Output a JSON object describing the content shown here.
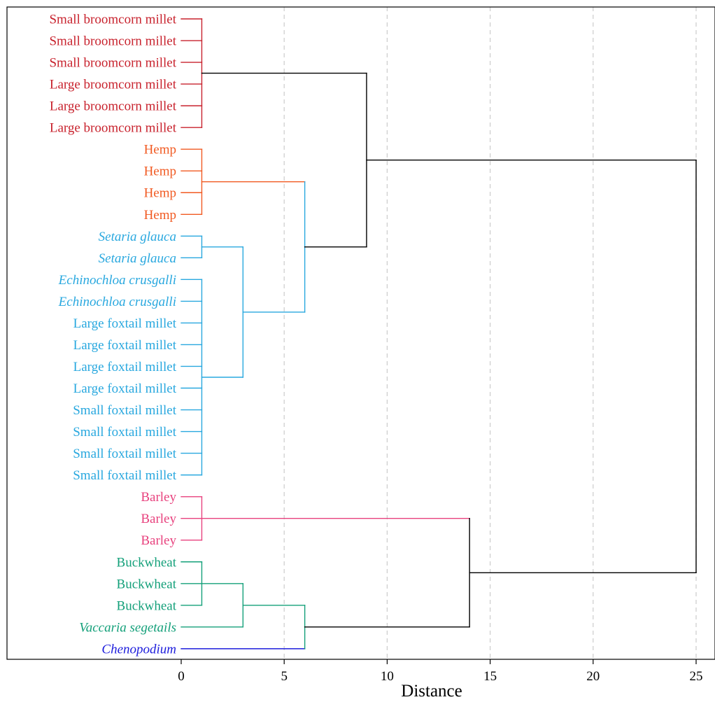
{
  "chart_data": {
    "type": "dendrogram",
    "xlabel": "Distance",
    "xlim": [
      0,
      26
    ],
    "xticks": [
      0,
      5,
      10,
      15,
      20,
      25
    ],
    "grid": "vertical-dashed",
    "colors": {
      "broomcorn": "#c8222d",
      "hemp": "#f15a22",
      "foxtail": "#29a8df",
      "barley": "#e8427e",
      "buckwheat": "#14a07a",
      "chenopodium": "#1c1cdc",
      "link": "#000000",
      "grid": "#cccccc"
    },
    "leaves": [
      {
        "label": "Small broomcorn millet",
        "group": "broomcorn",
        "italic": false
      },
      {
        "label": "Small broomcorn millet",
        "group": "broomcorn",
        "italic": false
      },
      {
        "label": "Small broomcorn millet",
        "group": "broomcorn",
        "italic": false
      },
      {
        "label": "Large broomcorn millet",
        "group": "broomcorn",
        "italic": false
      },
      {
        "label": "Large broomcorn millet",
        "group": "broomcorn",
        "italic": false
      },
      {
        "label": "Large broomcorn millet",
        "group": "broomcorn",
        "italic": false
      },
      {
        "label": "Hemp",
        "group": "hemp",
        "italic": false
      },
      {
        "label": "Hemp",
        "group": "hemp",
        "italic": false
      },
      {
        "label": "Hemp",
        "group": "hemp",
        "italic": false
      },
      {
        "label": "Hemp",
        "group": "hemp",
        "italic": false
      },
      {
        "label": "Setaria glauca",
        "group": "foxtail",
        "italic": true
      },
      {
        "label": "Setaria glauca",
        "group": "foxtail",
        "italic": true
      },
      {
        "label": "Echinochloa crusgalli",
        "group": "foxtail",
        "italic": true
      },
      {
        "label": "Echinochloa crusgalli",
        "group": "foxtail",
        "italic": true
      },
      {
        "label": "Large foxtail millet",
        "group": "foxtail",
        "italic": false
      },
      {
        "label": "Large foxtail millet",
        "group": "foxtail",
        "italic": false
      },
      {
        "label": "Large foxtail millet",
        "group": "foxtail",
        "italic": false
      },
      {
        "label": "Large foxtail millet",
        "group": "foxtail",
        "italic": false
      },
      {
        "label": "Small foxtail millet",
        "group": "foxtail",
        "italic": false
      },
      {
        "label": "Small foxtail millet",
        "group": "foxtail",
        "italic": false
      },
      {
        "label": "Small foxtail millet",
        "group": "foxtail",
        "italic": false
      },
      {
        "label": "Small foxtail millet",
        "group": "foxtail",
        "italic": false
      },
      {
        "label": "Barley",
        "group": "barley",
        "italic": false
      },
      {
        "label": "Barley",
        "group": "barley",
        "italic": false
      },
      {
        "label": "Barley",
        "group": "barley",
        "italic": false
      },
      {
        "label": "Buckwheat",
        "group": "buckwheat",
        "italic": false
      },
      {
        "label": "Buckwheat",
        "group": "buckwheat",
        "italic": false
      },
      {
        "label": "Buckwheat",
        "group": "buckwheat",
        "italic": false
      },
      {
        "label": "Vaccaria segetails",
        "group": "buckwheat",
        "italic": true
      },
      {
        "label": "Chenopodium",
        "group": "chenopodium",
        "italic": true
      }
    ],
    "merges": [
      {
        "id": "broomcorn",
        "height": 1,
        "children": [
          "L0",
          "L1",
          "L2",
          "L3",
          "L4",
          "L5"
        ],
        "group": "broomcorn"
      },
      {
        "id": "hemp",
        "height": 1,
        "children": [
          "L6",
          "L7",
          "L8",
          "L9"
        ],
        "group": "hemp"
      },
      {
        "id": "setaria",
        "height": 1,
        "children": [
          "L10",
          "L11"
        ],
        "group": "foxtail"
      },
      {
        "id": "echino_foxtail",
        "height": 1,
        "children": [
          "L12",
          "L13",
          "L14",
          "L15",
          "L16",
          "L17",
          "L18",
          "L19",
          "L20",
          "L21"
        ],
        "group": "foxtail"
      },
      {
        "id": "foxtail_all",
        "height": 3,
        "children": [
          "setaria",
          "echino_foxtail"
        ],
        "group": "foxtail"
      },
      {
        "id": "hemp_foxtail",
        "height": 6,
        "children": [
          "hemp",
          "foxtail_all"
        ],
        "group": "foxtail",
        "upper_group": "hemp"
      },
      {
        "id": "upper",
        "height": 9,
        "children": [
          "broomcorn",
          "hemp_foxtail"
        ],
        "group": "link"
      },
      {
        "id": "barley",
        "height": 1,
        "children": [
          "L22",
          "L23",
          "L24"
        ],
        "group": "barley"
      },
      {
        "id": "buckwheat",
        "height": 1,
        "children": [
          "L25",
          "L26",
          "L27"
        ],
        "group": "buckwheat"
      },
      {
        "id": "buck_vacc",
        "height": 3,
        "children": [
          "buckwheat",
          "L28"
        ],
        "group": "buckwheat"
      },
      {
        "id": "buck_cheno",
        "height": 6,
        "children": [
          "buck_vacc",
          "L29"
        ],
        "group": "buckwheat",
        "lower_group": "chenopodium"
      },
      {
        "id": "lower",
        "height": 14,
        "children": [
          "barley",
          "buck_cheno"
        ],
        "group": "link",
        "upper_group": "barley"
      },
      {
        "id": "root",
        "height": 25,
        "children": [
          "upper",
          "lower"
        ],
        "group": "link"
      }
    ]
  }
}
